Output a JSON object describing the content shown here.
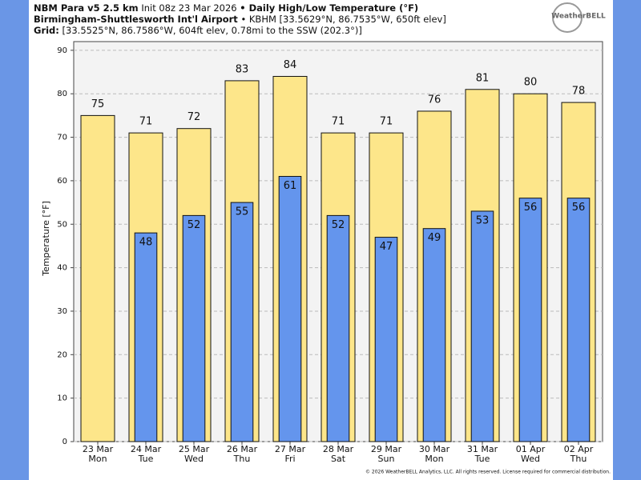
{
  "header": {
    "line1": [
      "NBM Para v5 2.5 km",
      "Init 08z 23 Mar 2026",
      "• Daily High/Low Temperature (°F)"
    ],
    "line2": [
      "Birmingham-Shuttlesworth Int'l Airport",
      "• KBHM [33.5629°N, 86.7535°W, 650ft elev]"
    ],
    "line3": [
      "Grid:",
      "[33.5525°N, 86.7586°W, 604ft elev, 0.78mi to the SSW (202.3°)]"
    ]
  },
  "logo": "WeatherBELL",
  "footer": "© 2026 WeatherBELL Analytics, LLC. All rights reserved. License required for commercial distribution.",
  "chart_data": {
    "type": "bar",
    "y_label": "Temperature [°F]",
    "categories": [
      "23 Mar",
      "24 Mar",
      "25 Mar",
      "26 Mar",
      "27 Mar",
      "28 Mar",
      "29 Mar",
      "30 Mar",
      "31 Mar",
      "01 Apr",
      "02 Apr"
    ],
    "weekdays": [
      "Mon",
      "Tue",
      "Wed",
      "Thu",
      "Fri",
      "Sat",
      "Sun",
      "Mon",
      "Tue",
      "Wed",
      "Thu"
    ],
    "series": [
      {
        "color": "#fde68a",
        "values": [
          75,
          71,
          72,
          83,
          84,
          71,
          71,
          76,
          81,
          80,
          78
        ]
      },
      {
        "color": "#6495ed",
        "values": [
          null,
          48,
          52,
          55,
          61,
          52,
          47,
          49,
          53,
          56,
          56
        ]
      }
    ],
    "ylim": [
      0,
      92
    ],
    "yticks": [
      0,
      10,
      20,
      30,
      40,
      50,
      60,
      70,
      80,
      90
    ],
    "grid": true
  }
}
